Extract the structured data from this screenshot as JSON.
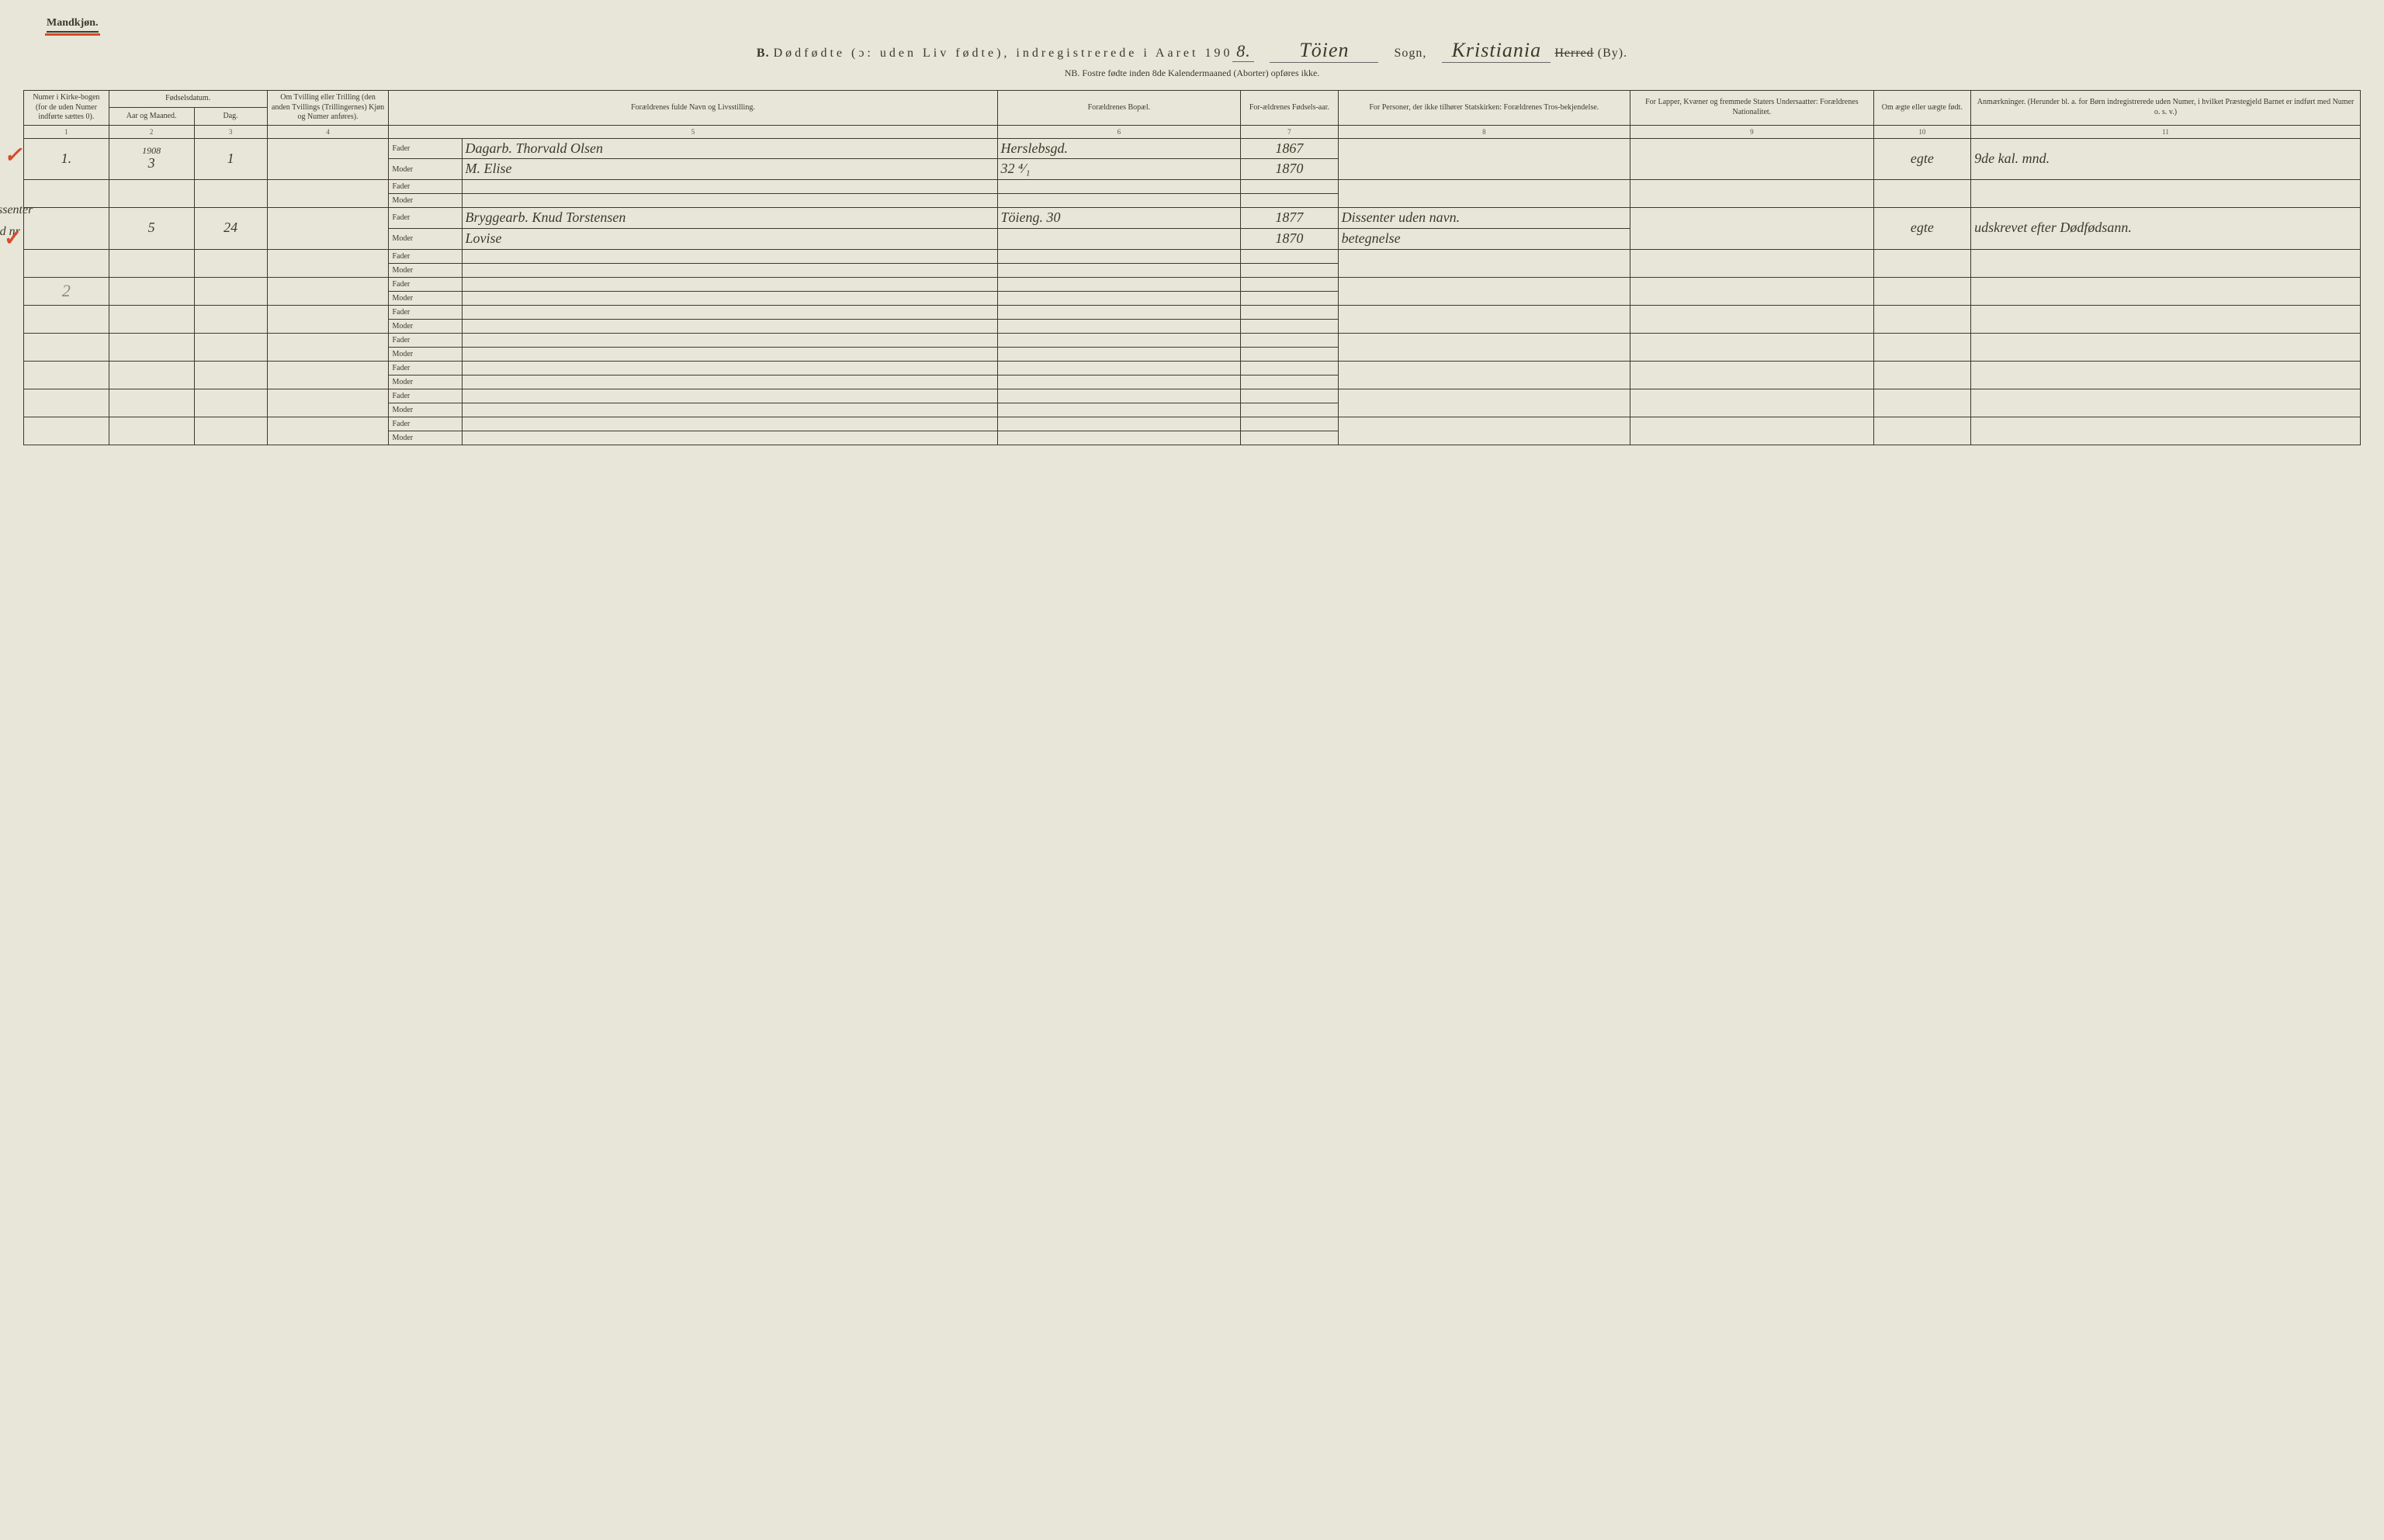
{
  "header": {
    "gender_label": "Mandkjøn.",
    "title_prefix": "B.",
    "title_main": "Dødfødte (ɔ: uden Liv fødte), indregistrerede i Aaret 190",
    "year_suffix": "8.",
    "sogn_value": "Töien",
    "sogn_label": "Sogn,",
    "by_value": "Kristiania",
    "herred_struck": "Herred",
    "by_suffix": "(By).",
    "nb_note": "NB.  Fostre fødte inden 8de Kalendermaaned (Aborter) opføres ikke."
  },
  "columns": {
    "c1": "Numer i Kirke-bogen (for de uden Numer indførte sættes 0).",
    "c2_group": "Fødselsdatum.",
    "c2a": "Aar og Maaned.",
    "c2b": "Dag.",
    "c4": "Om Tvilling eller Trilling (den anden Tvillings (Trillingernes) Kjøn og Numer anføres).",
    "c5": "Forældrenes fulde Navn og Livsstilling.",
    "c6": "Forældrenes Bopæl.",
    "c7": "For-ældrenes Fødsels-aar.",
    "c8": "For Personer, der ikke tilhører Statskirken: Forældrenes Tros-bekjendelse.",
    "c9": "For Lapper, Kvæner og fremmede Staters Undersaatter: Forældrenes Nationalitet.",
    "c10": "Om ægte eller uægte født.",
    "c11": "Anmærkninger. (Herunder bl. a. for Børn indregistrerede uden Numer, i hvilket Præstegjeld Barnet er indført med Numer o. s. v.)"
  },
  "colnums": [
    "1",
    "2",
    "3",
    "4",
    "5",
    "6",
    "7",
    "8",
    "9",
    "10",
    "11"
  ],
  "parent_labels": {
    "fader": "Fader",
    "moder": "Moder"
  },
  "rows": [
    {
      "margin_check": "✓",
      "num": "1.",
      "aar": "1908\n3",
      "dag": "1",
      "tvilling": "",
      "fader_name": "Dagarb. Thorvald Olsen",
      "moder_name": "M. Elise",
      "fader_bopel": "Herslebsgd.",
      "moder_bopel": "32 ⁴⁄₁",
      "fader_aar": "1867",
      "moder_aar": "1870",
      "tros": "",
      "nat": "",
      "aegte": "egte",
      "anm": "9de kal. mnd."
    },
    {
      "margin_check": "✓",
      "margin_note_top": "Dissenter",
      "margin_note_bot": "med nr",
      "num": "",
      "aar": "5",
      "dag": "24",
      "tvilling": "",
      "fader_name": "Bryggearb. Knud Torstensen",
      "moder_name": "Lovise",
      "fader_bopel": "Töieng. 30",
      "moder_bopel": "",
      "fader_aar": "1877",
      "moder_aar": "1870",
      "tros_f": "Dissenter uden navn.",
      "tros_m": "betegnelse",
      "nat": "",
      "aegte": "egte",
      "anm": "udskrevet efter Dødfødsann."
    }
  ],
  "pencil_2": "2",
  "empty_pairs": 7,
  "colors": {
    "paper": "#e8e6d8",
    "ink": "#3a3a2a",
    "red": "#d94a2a",
    "pencil": "#888888"
  }
}
